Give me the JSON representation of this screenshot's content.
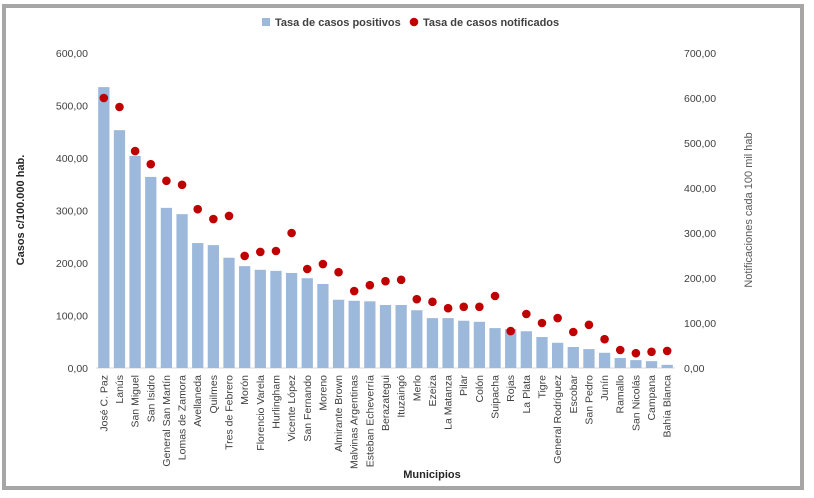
{
  "chart_data": {
    "type": "combo",
    "categories": [
      "José C. Paz",
      "Lanús",
      "San Miguel",
      "San Isidro",
      "General San Martín",
      "Lomas de Zamora",
      "Avellaneda",
      "Quilmes",
      "Tres de Febrero",
      "Morón",
      "Florencio Varela",
      "Hurlingham",
      "Vicente López",
      "San Fernando",
      "Moreno",
      "Almirante Brown",
      "Malvinas Argentinas",
      "Esteban Echeverría",
      "Berazategui",
      "Ituzaingó",
      "Merlo",
      "Ezeiza",
      "La Matanza",
      "Pilar",
      "Colón",
      "Suipacha",
      "Rojas",
      "La Plata",
      "Tigre",
      "General Rodríguez",
      "Escobar",
      "San Pedro",
      "Junín",
      "Ramallo",
      "San Nicolás",
      "Campana",
      "Bahía Blanca"
    ],
    "series": [
      {
        "name": "Tasa de casos positivos",
        "type": "bar",
        "color": "#9cb8db",
        "values": [
          535,
          453,
          404,
          364,
          305,
          293,
          238,
          234,
          210,
          194,
          187,
          185,
          181,
          171,
          160,
          130,
          128,
          127,
          120,
          120,
          110,
          95,
          95,
          90,
          88,
          76,
          74,
          70,
          59,
          48,
          40,
          36,
          29,
          19,
          15,
          13,
          6
        ]
      },
      {
        "name": "Tasa de casos notificados",
        "type": "scatter",
        "axis": "y2",
        "color": "#c00000",
        "values": [
          600,
          580,
          482,
          453,
          416,
          407,
          353,
          331,
          338,
          249,
          258,
          260,
          300,
          220,
          231,
          213,
          171,
          184,
          193,
          196,
          153,
          147,
          133,
          136,
          136,
          160,
          82,
          120,
          100,
          111,
          80,
          96,
          64,
          40,
          33,
          36,
          38
        ]
      }
    ],
    "xlabel": "Municipios",
    "ylabel": "Casos c/100.000 hab.",
    "y2label": "Notificaciones cada 100 mil hab",
    "ylim": [
      0,
      600
    ],
    "yticks": [
      {
        "value": 0,
        "label": "0,00"
      },
      {
        "value": 100,
        "label": "100,00"
      },
      {
        "value": 200,
        "label": "200,00"
      },
      {
        "value": 300,
        "label": "300,00"
      },
      {
        "value": 400,
        "label": "400,00"
      },
      {
        "value": 500,
        "label": "500,00"
      },
      {
        "value": 600,
        "label": "600,00"
      }
    ],
    "y2lim": [
      0,
      700
    ],
    "y2ticks": [
      {
        "value": 0,
        "label": "0,00"
      },
      {
        "value": 100,
        "label": "100,00"
      },
      {
        "value": 200,
        "label": "200,00"
      },
      {
        "value": 300,
        "label": "300,00"
      },
      {
        "value": 400,
        "label": "400,00"
      },
      {
        "value": 500,
        "label": "500,00"
      },
      {
        "value": 600,
        "label": "600,00"
      },
      {
        "value": 700,
        "label": "700,00"
      }
    ],
    "legend": "top"
  }
}
